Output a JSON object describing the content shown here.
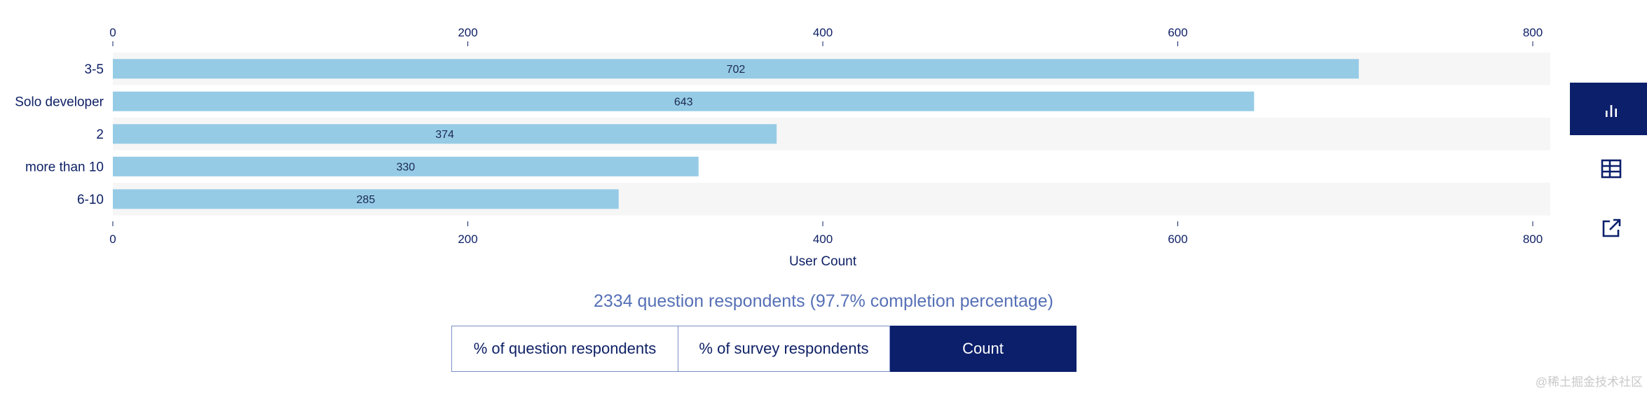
{
  "chart_data": {
    "type": "bar",
    "orientation": "horizontal",
    "categories": [
      "3-5",
      "Solo developer",
      "2",
      "more than 10",
      "6-10"
    ],
    "values": [
      702,
      643,
      374,
      330,
      285
    ],
    "data_labels": [
      "702",
      "643",
      "374",
      "330",
      "285"
    ],
    "xlabel": "User Count",
    "xlim": [
      0,
      810
    ],
    "xticks": [
      "0",
      "200",
      "400",
      "600",
      "800"
    ],
    "tick_values": [
      0,
      200,
      400,
      600,
      800
    ],
    "grid": false,
    "bar_color": "#96cbe6",
    "band_color": "#f6f6f6"
  },
  "summary": "2334 question respondents (97.7% completion percentage)",
  "buttons": {
    "pct_question": "% of question respondents",
    "pct_survey": "% of survey respondents",
    "count": "Count",
    "active": "count"
  },
  "tools": {
    "bar_chart_icon": "bar-chart-icon",
    "table_icon": "table-icon",
    "open_external_icon": "open-external-icon"
  },
  "watermark": "@稀土掘金技术社区",
  "colors": {
    "accent": "#0b1f6b",
    "text": "#0f2166",
    "summary": "#5670b6"
  }
}
